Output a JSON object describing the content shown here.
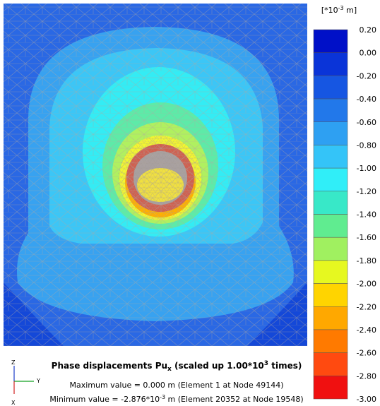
{
  "legend": {
    "unit_prefix": "[*10",
    "unit_exponent": "-3",
    "unit_suffix": " m]",
    "labels": [
      "0.20",
      "0.00",
      "-0.20",
      "-0.40",
      "-0.60",
      "-0.80",
      "-1.00",
      "-1.20",
      "-1.40",
      "-1.60",
      "-1.80",
      "-2.00",
      "-2.20",
      "-2.40",
      "-2.60",
      "-2.80",
      "-3.00"
    ],
    "band_colors": [
      "#0010c8",
      "#0a34d8",
      "#1656e2",
      "#2278ea",
      "#2ea0f2",
      "#34c4f8",
      "#30eef8",
      "#38e8c8",
      "#60ec90",
      "#a0f060",
      "#e6f820",
      "#ffd400",
      "#ffa800",
      "#ff7a00",
      "#ff4a10",
      "#f01010"
    ]
  },
  "caption": {
    "title_main": "Phase displacements Pu",
    "title_sub": "x",
    "title_mid": " (scaled up 1.00*10",
    "title_sup": "3",
    "title_end": " times)",
    "max_line": "Maximum value = 0.000 m (Element 1 at Node 49144)",
    "min_prefix": "Minimum value = -2.876*10",
    "min_sup": "-3",
    "min_suffix": " m (Element 20352 at Node 19548)"
  },
  "axes": {
    "z": "Z",
    "y": "Y",
    "x": "X"
  }
}
